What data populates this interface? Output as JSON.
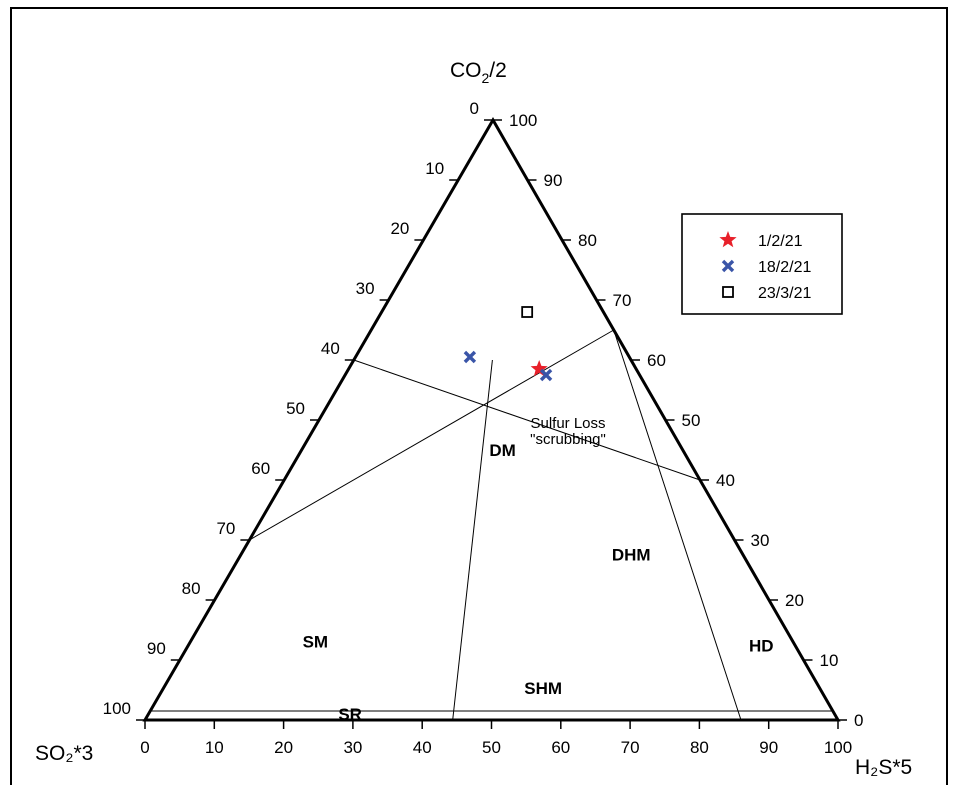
{
  "chart_data": {
    "type": "ternary",
    "corners": {
      "top": {
        "base": "CO",
        "sub": "2",
        "rest": "/2"
      },
      "left": "SO₂*3",
      "right": "H₂S*5"
    },
    "axes": {
      "bottom": {
        "ticks": [
          0,
          10,
          20,
          30,
          40,
          50,
          60,
          70,
          80,
          90,
          100
        ]
      },
      "left": {
        "ticks": [
          0,
          10,
          20,
          30,
          40,
          50,
          60,
          70,
          80,
          90,
          100
        ]
      },
      "right": {
        "ticks": [
          0,
          10,
          20,
          30,
          40,
          50,
          60,
          70,
          80,
          90,
          100
        ]
      }
    },
    "regions": [
      {
        "label": "DM",
        "at": [
          29.5,
          44,
          26.5
        ]
      },
      {
        "label": "DHM",
        "at": [
          56.8,
          26.6,
          16.6
        ]
      },
      {
        "label": "HD",
        "at": [
          83.2,
          11.4,
          5.4
        ]
      },
      {
        "label": "SM",
        "at": [
          18.5,
          12.1,
          69.4
        ]
      },
      {
        "label": "SHM",
        "at": [
          55.3,
          4.3,
          40.4
        ]
      },
      {
        "label": "SR",
        "at": [
          29.6,
          0,
          70.4
        ]
      }
    ],
    "annotation": {
      "lines": [
        "Sulfur Loss",
        "\"scrubbing\""
      ],
      "at": [
        54.9,
        73,
        22.1
      ]
    },
    "boundaries": [
      {
        "from": [
          0,
          30,
          70
        ],
        "to": [
          35,
          65,
          0
        ]
      },
      {
        "from": [
          0,
          60,
          40
        ],
        "to": [
          60,
          40,
          0
        ]
      },
      {
        "from": [
          20,
          60,
          20
        ],
        "to": [
          44.4,
          0,
          55.6
        ]
      },
      {
        "from": [
          35,
          65,
          0
        ],
        "to": [
          86,
          0,
          14
        ]
      },
      {
        "from": [
          0,
          1.5,
          98.5
        ],
        "to": [
          98.5,
          1.5,
          0
        ]
      }
    ],
    "series": [
      {
        "name": "1/2/21",
        "marker": "star",
        "color": "#e8202a",
        "points": [
          {
            "h2s": 27.5,
            "co2": 58.5,
            "so2": 14
          }
        ]
      },
      {
        "name": "18/2/21",
        "marker": "x",
        "color": "#3a55a8",
        "points": [
          {
            "h2s": 16.5,
            "co2": 60.5,
            "so2": 23
          },
          {
            "h2s": 29,
            "co2": 57.5,
            "so2": 13.5
          }
        ]
      },
      {
        "name": "23/3/21",
        "marker": "square",
        "color": "#000000",
        "points": [
          {
            "h2s": 21,
            "co2": 68,
            "so2": 11
          }
        ]
      }
    ],
    "legend_position": "top-right",
    "grid": false
  }
}
